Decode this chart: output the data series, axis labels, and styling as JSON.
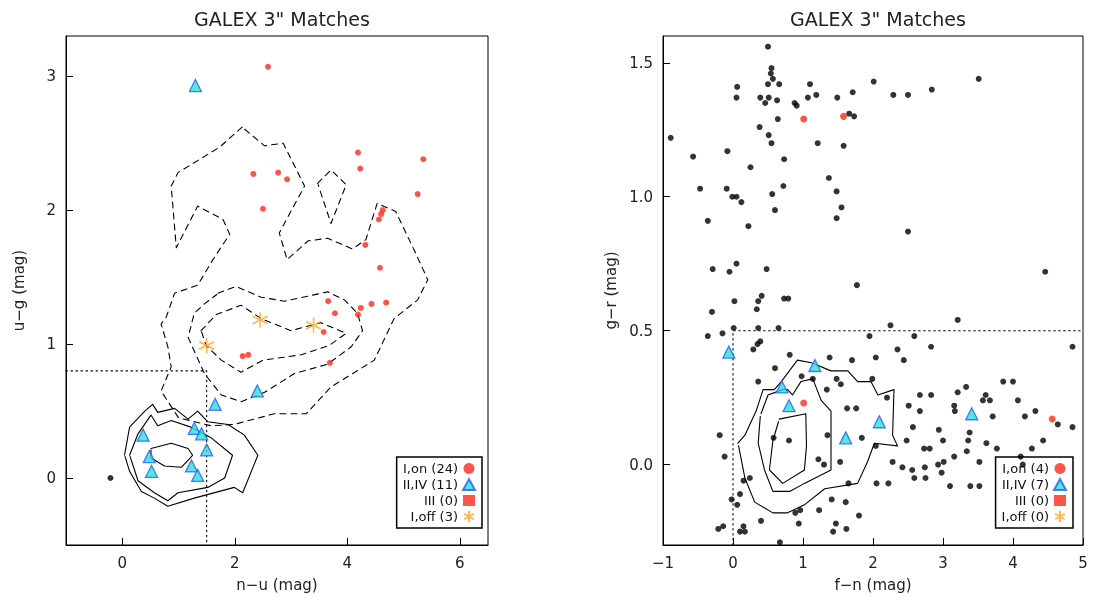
{
  "chart_data": [
    {
      "type": "scatter",
      "title": "GALEX 3\" Matches",
      "xlabel": "n−u (mag)",
      "ylabel": "u−g (mag)",
      "xlim": [
        -1,
        6.5
      ],
      "ylim": [
        -0.5,
        3.3
      ],
      "xticks": [
        0,
        2,
        4,
        6
      ],
      "yticks": [
        0,
        1,
        2,
        3
      ],
      "grid": false,
      "legend": "bottom right",
      "series": [
        {
          "type": "line",
          "line_style": "solid",
          "marker": "none",
          "color": "#000000",
          "x": [
            0.04,
            0.13,
            0.4,
            0.54,
            0.63,
            0.93,
            1.17,
            1.34,
            1.52,
            1.88,
            2.17,
            2.41,
            2.14,
            1.99,
            1.28,
            0.81,
            0.57,
            0.34,
            0.13,
            0.05
          ],
          "values": [
            0.17,
            0.38,
            0.5,
            0.55,
            0.49,
            0.52,
            0.44,
            0.5,
            0.42,
            0.4,
            0.32,
            0.17,
            -0.11,
            -0.07,
            -0.15,
            -0.21,
            -0.15,
            -0.1,
            0.05,
            0.16
          ]
        },
        {
          "type": "line",
          "line_style": "solid",
          "marker": "none",
          "color": "#000000",
          "x": [
            0.13,
            0.28,
            0.51,
            0.63,
            0.87,
            1.22,
            1.58,
            1.96,
            1.82,
            1.52,
            0.99,
            0.81,
            0.57,
            0.28,
            0.14
          ],
          "values": [
            0.17,
            0.33,
            0.47,
            0.39,
            0.43,
            0.38,
            0.3,
            0.17,
            0.0,
            -0.07,
            -0.11,
            -0.17,
            -0.11,
            -0.02,
            0.16
          ]
        },
        {
          "type": "line",
          "line_style": "solid",
          "marker": "none",
          "color": "#000000",
          "x": [
            0.51,
            0.87,
            1.17,
            1.25,
            1.05,
            0.75,
            0.51,
            0.51
          ],
          "values": [
            0.22,
            0.26,
            0.22,
            0.17,
            0.08,
            0.09,
            0.15,
            0.21
          ]
        },
        {
          "type": "line",
          "line_style": "dashed",
          "marker": "none",
          "color": "#000000",
          "x": [
            1.4,
            1.67,
            2.11,
            2.47,
            3.0,
            3.53,
            3.98,
            3.68,
            3.18,
            2.5,
            2.11,
            1.76,
            1.49,
            1.41
          ],
          "values": [
            1.1,
            1.22,
            1.29,
            1.19,
            1.1,
            1.16,
            1.08,
            0.99,
            0.92,
            0.88,
            0.79,
            0.88,
            0.99,
            1.09
          ]
        },
        {
          "type": "line",
          "line_style": "dashed",
          "marker": "none",
          "color": "#000000",
          "x": [
            1.7,
            2.02,
            2.47,
            2.88,
            3.65,
            3.95,
            4.18,
            4.27,
            4.07,
            3.65,
            3.06,
            2.53,
            2.11,
            1.76,
            1.46,
            1.17,
            1.28,
            1.46,
            1.68
          ],
          "values": [
            1.38,
            1.43,
            1.35,
            1.32,
            1.39,
            1.33,
            1.23,
            1.1,
            0.98,
            0.85,
            0.78,
            0.64,
            0.57,
            0.62,
            0.78,
            1.05,
            1.23,
            1.3,
            1.37
          ]
        },
        {
          "type": "line",
          "line_style": "dashed",
          "marker": "none",
          "color": "#000000",
          "x": [
            2.13,
            1.73,
            0.99,
            0.87,
            0.96,
            1.34,
            1.79,
            1.91,
            1.64,
            1.34,
            0.93,
            0.78,
            0.69,
            0.81,
            0.87,
            0.69,
            1.0,
            1.58,
            1.99,
            2.7,
            3.27,
            3.71,
            4.48,
            4.83,
            5.25,
            5.43,
            5.19,
            4.86,
            4.53,
            4.33,
            4.09,
            3.65,
            3.3,
            2.93,
            2.79,
            3.24,
            2.86,
            2.53,
            2.16
          ],
          "values": [
            2.62,
            2.47,
            2.28,
            2.18,
            1.72,
            2.03,
            1.93,
            1.82,
            1.65,
            1.44,
            1.38,
            1.2,
            1.15,
            0.98,
            0.83,
            0.65,
            0.45,
            0.39,
            0.4,
            0.48,
            0.48,
            0.68,
            0.88,
            1.19,
            1.33,
            1.48,
            1.7,
            1.99,
            2.05,
            1.78,
            1.71,
            1.79,
            1.77,
            1.63,
            1.83,
            2.18,
            2.5,
            2.48,
            2.61
          ]
        },
        {
          "type": "line",
          "line_style": "dashed",
          "marker": "none",
          "color": "#000000",
          "x": [
            3.47,
            3.71,
            3.98,
            3.71,
            3.48
          ],
          "values": [
            2.2,
            2.3,
            2.19,
            1.9,
            2.19
          ]
        },
        {
          "type": "line",
          "line_style": "dotted",
          "marker": "none",
          "color": "#000000",
          "x": [
            -1,
            1.5,
            1.5
          ],
          "values": [
            0.8,
            0.8,
            -0.5
          ]
        },
        {
          "type": "scatter",
          "marker": "circle",
          "color": "#000000",
          "x": [
            -0.21
          ],
          "values": [
            0.0
          ]
        },
        {
          "name": "I,on (24)",
          "marker": "circle",
          "color": "#ff2a1a",
          "x": [
            2.59,
            4.19,
            4.23,
            5.35,
            2.33,
            2.77,
            2.93,
            2.5,
            5.25,
            4.63,
            4.6,
            4.56,
            4.32,
            4.58,
            3.66,
            3.78,
            4.24,
            4.19,
            4.43,
            4.69,
            3.58,
            2.14,
            2.24,
            3.69
          ],
          "values": [
            3.07,
            2.43,
            2.31,
            2.38,
            2.27,
            2.28,
            2.23,
            2.01,
            2.12,
            2.0,
            1.97,
            1.93,
            1.74,
            1.57,
            1.32,
            1.23,
            1.27,
            1.22,
            1.3,
            1.31,
            1.09,
            0.91,
            0.92,
            0.86
          ]
        },
        {
          "name": "II,IV (11)",
          "marker": "triangle",
          "color": "#2ee0d2",
          "x": [
            1.3,
            2.4,
            1.65,
            0.37,
            1.28,
            1.41,
            1.5,
            0.48,
            1.23,
            0.52,
            1.34
          ],
          "values": [
            2.93,
            0.65,
            0.55,
            0.32,
            0.37,
            0.33,
            0.21,
            0.16,
            0.09,
            0.05,
            0.02
          ]
        },
        {
          "name": "III (0)",
          "marker": "square",
          "color": "#ff2a1a"
        },
        {
          "name": "I,off (3)",
          "marker": "cross",
          "color": "#ffa51f",
          "x": [
            1.5,
            2.45,
            3.4
          ],
          "values": [
            0.99,
            1.18,
            1.14
          ]
        }
      ]
    },
    {
      "type": "scatter",
      "title": "GALEX 3\" Matches",
      "xlabel": "f−n (mag)",
      "ylabel": "g−r (mag)",
      "xlim": [
        -1,
        5
      ],
      "ylim": [
        -0.3,
        1.6
      ],
      "xticks": [
        {
          "value": -1,
          "label": "−1"
        },
        0,
        1,
        2,
        3,
        4,
        5
      ],
      "yticks": [
        {
          "value": 0,
          "label": "0.0"
        },
        0.5,
        {
          "value": 1,
          "label": "1.0"
        },
        1.5
      ],
      "grid": false,
      "legend": "bottom right",
      "series": [
        {
          "type": "line",
          "line_style": "solid",
          "marker": "none",
          "color": "#000000",
          "x": [
            0.07,
            0.17,
            0.33,
            0.43,
            0.59,
            0.69,
            0.92,
            1.12,
            1.4,
            1.64,
            1.78,
            1.97,
            2.07,
            2.3,
            2.28,
            2.35,
            2.02,
            1.92,
            1.78,
            1.31,
            1.02,
            0.78,
            0.57,
            0.31,
            0.17,
            0.08
          ],
          "values": [
            0.08,
            0.11,
            0.2,
            0.28,
            0.28,
            0.31,
            0.39,
            0.38,
            0.35,
            0.35,
            0.31,
            0.31,
            0.26,
            0.28,
            0.11,
            0.07,
            0.08,
            0.01,
            -0.07,
            -0.09,
            -0.15,
            -0.18,
            -0.18,
            -0.14,
            -0.05,
            0.07
          ]
        },
        {
          "type": "line",
          "line_style": "solid",
          "marker": "none",
          "color": "#000000",
          "x": [
            0.4,
            0.5,
            0.71,
            0.78,
            0.85,
            0.97,
            1.14,
            1.26,
            1.4,
            1.4,
            1.02,
            0.81,
            0.57,
            0.45,
            0.36,
            0.39
          ],
          "values": [
            0.19,
            0.26,
            0.28,
            0.28,
            0.26,
            0.31,
            0.32,
            0.24,
            0.2,
            -0.02,
            -0.07,
            -0.1,
            -0.1,
            -0.02,
            0.08,
            0.18
          ]
        },
        {
          "type": "line",
          "line_style": "solid",
          "marker": "none",
          "color": "#000000",
          "x": [
            0.66,
            1.04,
            1.05,
            1.02,
            0.71,
            0.52,
            0.57,
            0.65
          ],
          "values": [
            0.17,
            0.19,
            0.07,
            -0.02,
            -0.07,
            -0.02,
            0.09,
            0.16
          ]
        },
        {
          "type": "line",
          "line_style": "dotted",
          "marker": "none",
          "color": "#000000",
          "x": [
            0,
            0,
            5
          ],
          "values": [
            -0.3,
            0.5,
            0.5
          ]
        },
        {
          "type": "scatter",
          "marker": "circle",
          "color": "#000000",
          "x": [
            0.5,
            0.55,
            0.54,
            0.57,
            0.5,
            0.66,
            1.1,
            0.06,
            0.05,
            0.39,
            0.51,
            0.63,
            0.46,
            0.88,
            0.91,
            1.07,
            1.19,
            1.49,
            1.71,
            2.01,
            2.29,
            2.5,
            2.84,
            3.51,
            1.66,
            1.73,
            0.64,
            0.38,
            0.51,
            0.55,
            1.21,
            1.58,
            -0.89,
            -0.57,
            -0.08,
            0.73,
            0.25,
            1.37,
            -0.47,
            -0.09,
            0.72,
            -0.01,
            0.05,
            0.56,
            1.48,
            0.12,
            1.55,
            0.6,
            1.48,
            -0.36,
            0.22,
            2.5,
            -0.29,
            -0.05,
            0.05,
            0.48,
            4.46,
            1.77,
            0.41,
            0.02,
            0.36,
            0.73,
            0.79,
            0.34,
            -0.3,
            0.01,
            0.36,
            0.65,
            2.25,
            3.21,
            -0.36,
            -0.15,
            0.29,
            0.35,
            0.39,
            0.81,
            0.6,
            1.38,
            1.7,
            2.04,
            2.35,
            2.44,
            2.83,
            1.95,
            2.59,
            4.85,
            0.36,
            0.98,
            1.14,
            1.34,
            1.48,
            1.54,
            1.99,
            2.2,
            2.67,
            2.83,
            3.21,
            3.33,
            3.86,
            4.0,
            4.07,
            4.32,
            3.57,
            3.67,
            3.61,
            2.51,
            2.67,
            3.16,
            3.17,
            3.71,
            4.17,
            4.85,
            -0.19,
            -0.12,
            0.8,
            0.58,
            1.35,
            1.63,
            1.76,
            1.84,
            2.04,
            2.48,
            2.57,
            2.94,
            2.73,
            2.81,
            3.0,
            3.38,
            3.36,
            3.62,
            3.77,
            4.27,
            4.43,
            2.28,
            2.42,
            2.56,
            2.74,
            2.93,
            3.01,
            3.16,
            3.34,
            3.52,
            2.75,
            2.59,
            2.98,
            3.1,
            3.39,
            3.52,
            2.05,
            2.22,
            1.3,
            1.22,
            1.53,
            1.65,
            1.41,
            1.23,
            1.61,
            1.8,
            1.47,
            1.62,
            1.43,
            0.94,
            0.96,
            0.89,
            0.4,
            0.24,
            0.15,
            0.1,
            0.06,
            -0.02,
            -0.21,
            -0.14,
            0.15,
            0.1,
            0.17,
            0.67,
            4.11,
            4.14,
            4.64
          ],
          "values": [
            1.56,
            1.48,
            1.46,
            1.44,
            1.42,
            1.42,
            1.42,
            1.41,
            1.37,
            1.37,
            1.37,
            1.36,
            1.35,
            1.35,
            1.34,
            1.37,
            1.38,
            1.37,
            1.39,
            1.43,
            1.38,
            1.38,
            1.4,
            1.44,
            1.31,
            1.3,
            1.29,
            1.26,
            1.23,
            1.2,
            1.2,
            1.19,
            1.22,
            1.15,
            1.17,
            1.14,
            1.11,
            1.07,
            1.03,
            1.03,
            1.04,
            1.0,
            1.0,
            1.01,
            1.02,
            0.98,
            0.96,
            0.95,
            0.92,
            0.91,
            0.89,
            0.87,
            0.73,
            0.72,
            0.75,
            0.73,
            0.72,
            0.67,
            0.63,
            0.61,
            0.61,
            0.62,
            0.62,
            0.58,
            0.57,
            0.51,
            0.51,
            0.51,
            0.52,
            0.54,
            0.48,
            0.49,
            0.43,
            0.45,
            0.46,
            0.41,
            0.36,
            0.4,
            0.39,
            0.4,
            0.43,
            0.39,
            0.44,
            0.48,
            0.48,
            0.44,
            0.31,
            0.33,
            0.32,
            0.28,
            0.32,
            0.3,
            0.32,
            0.25,
            0.26,
            0.26,
            0.27,
            0.29,
            0.31,
            0.31,
            0.24,
            0.2,
            0.24,
            0.24,
            0.26,
            0.22,
            0.2,
            0.22,
            0.2,
            0.18,
            0.18,
            0.14,
            0.11,
            0.03,
            0.09,
            0.1,
            0.11,
            0.21,
            0.21,
            0.1,
            0.07,
            0.09,
            0.14,
            0.13,
            0.06,
            0.06,
            0.09,
            0.12,
            0.09,
            0.08,
            0.06,
            0.06,
            0.09,
            0.01,
            -0.01,
            -0.02,
            -0.01,
            0.0,
            0.01,
            0.03,
            0.05,
            0.01,
            -0.05,
            -0.05,
            -0.03,
            -0.08,
            -0.08,
            -0.08,
            -0.07,
            -0.07,
            0.0,
            0.02,
            0.01,
            -0.07,
            -0.13,
            -0.17,
            -0.14,
            -0.19,
            -0.22,
            -0.24,
            -0.25,
            -0.22,
            -0.17,
            -0.18,
            -0.21,
            -0.05,
            -0.06,
            -0.11,
            -0.15,
            -0.13,
            -0.24,
            -0.23,
            -0.23,
            -0.25,
            -0.25,
            -0.29,
            0.03,
            0.0,
            0.15
          ]
        },
        {
          "name": "I,on (4)",
          "marker": "circle",
          "color": "#ff2a1a",
          "x": [
            1.01,
            1.58,
            1.01,
            4.56
          ],
          "values": [
            1.29,
            1.3,
            0.23,
            0.17
          ]
        },
        {
          "name": "II,IV (7)",
          "marker": "triangle",
          "color": "#2ee0d2",
          "x": [
            -0.06,
            0.7,
            0.8,
            1.17,
            1.61,
            2.09,
            3.41
          ],
          "values": [
            0.42,
            0.29,
            0.22,
            0.37,
            0.1,
            0.16,
            0.19
          ]
        },
        {
          "name": "III (0)",
          "marker": "square",
          "color": "#ff2a1a"
        },
        {
          "name": "I,off (0)",
          "marker": "cross",
          "color": "#ffa51f"
        }
      ]
    }
  ]
}
